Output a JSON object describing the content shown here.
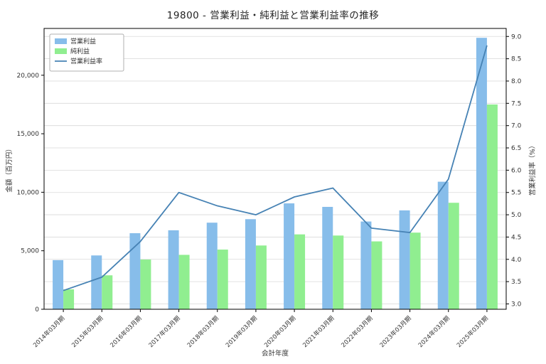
{
  "title": "19800 - 営業利益・純利益と営業利益率の推移",
  "chart_data": {
    "type": "bar+line",
    "title": "19800 - 営業利益・純利益と営業利益率の推移",
    "categories": [
      "2014年03月期",
      "2015年03月期",
      "2016年03月期",
      "2017年03月期",
      "2018年03月期",
      "2019年03月期",
      "2020年03月期",
      "2021年03月期",
      "2022年03月期",
      "2023年03月期",
      "2024年03月期",
      "2025年03月期"
    ],
    "series": [
      {
        "name": "営業利益",
        "type": "bar",
        "axis": "left",
        "color": "#87bdea",
        "values": [
          4200,
          4600,
          6500,
          6750,
          7400,
          7700,
          9050,
          8750,
          7500,
          8450,
          10900,
          23200
        ]
      },
      {
        "name": "純利益",
        "type": "bar",
        "axis": "left",
        "color": "#90ee90",
        "values": [
          1700,
          2900,
          4250,
          4650,
          5100,
          5450,
          6400,
          6300,
          5800,
          6550,
          9100,
          17500
        ]
      },
      {
        "name": "営業利益率",
        "type": "line",
        "axis": "right",
        "color": "#4682b4",
        "values": [
          3.3,
          3.6,
          4.4,
          5.5,
          5.2,
          5.0,
          5.4,
          5.6,
          4.7,
          4.6,
          5.8,
          8.8
        ]
      }
    ],
    "xlabel": "会計年度",
    "ylabel_left": "金額（百万円）",
    "ylabel_right": "営業利益率（%）",
    "ylim_left": [
      0,
      24000
    ],
    "yticks_left": [
      0,
      5000,
      10000,
      15000,
      20000
    ],
    "ylim_right": [
      2.88,
      9.18
    ],
    "yticks_right": [
      3.0,
      3.5,
      4.0,
      4.5,
      5.0,
      5.5,
      6.0,
      6.5,
      7.0,
      7.5,
      8.0,
      8.5,
      9.0
    ],
    "grid": true,
    "legend_position": "upper-left",
    "background": "#ffffff",
    "grid_color": "#d9d9d9",
    "axis_color": "#000000"
  }
}
